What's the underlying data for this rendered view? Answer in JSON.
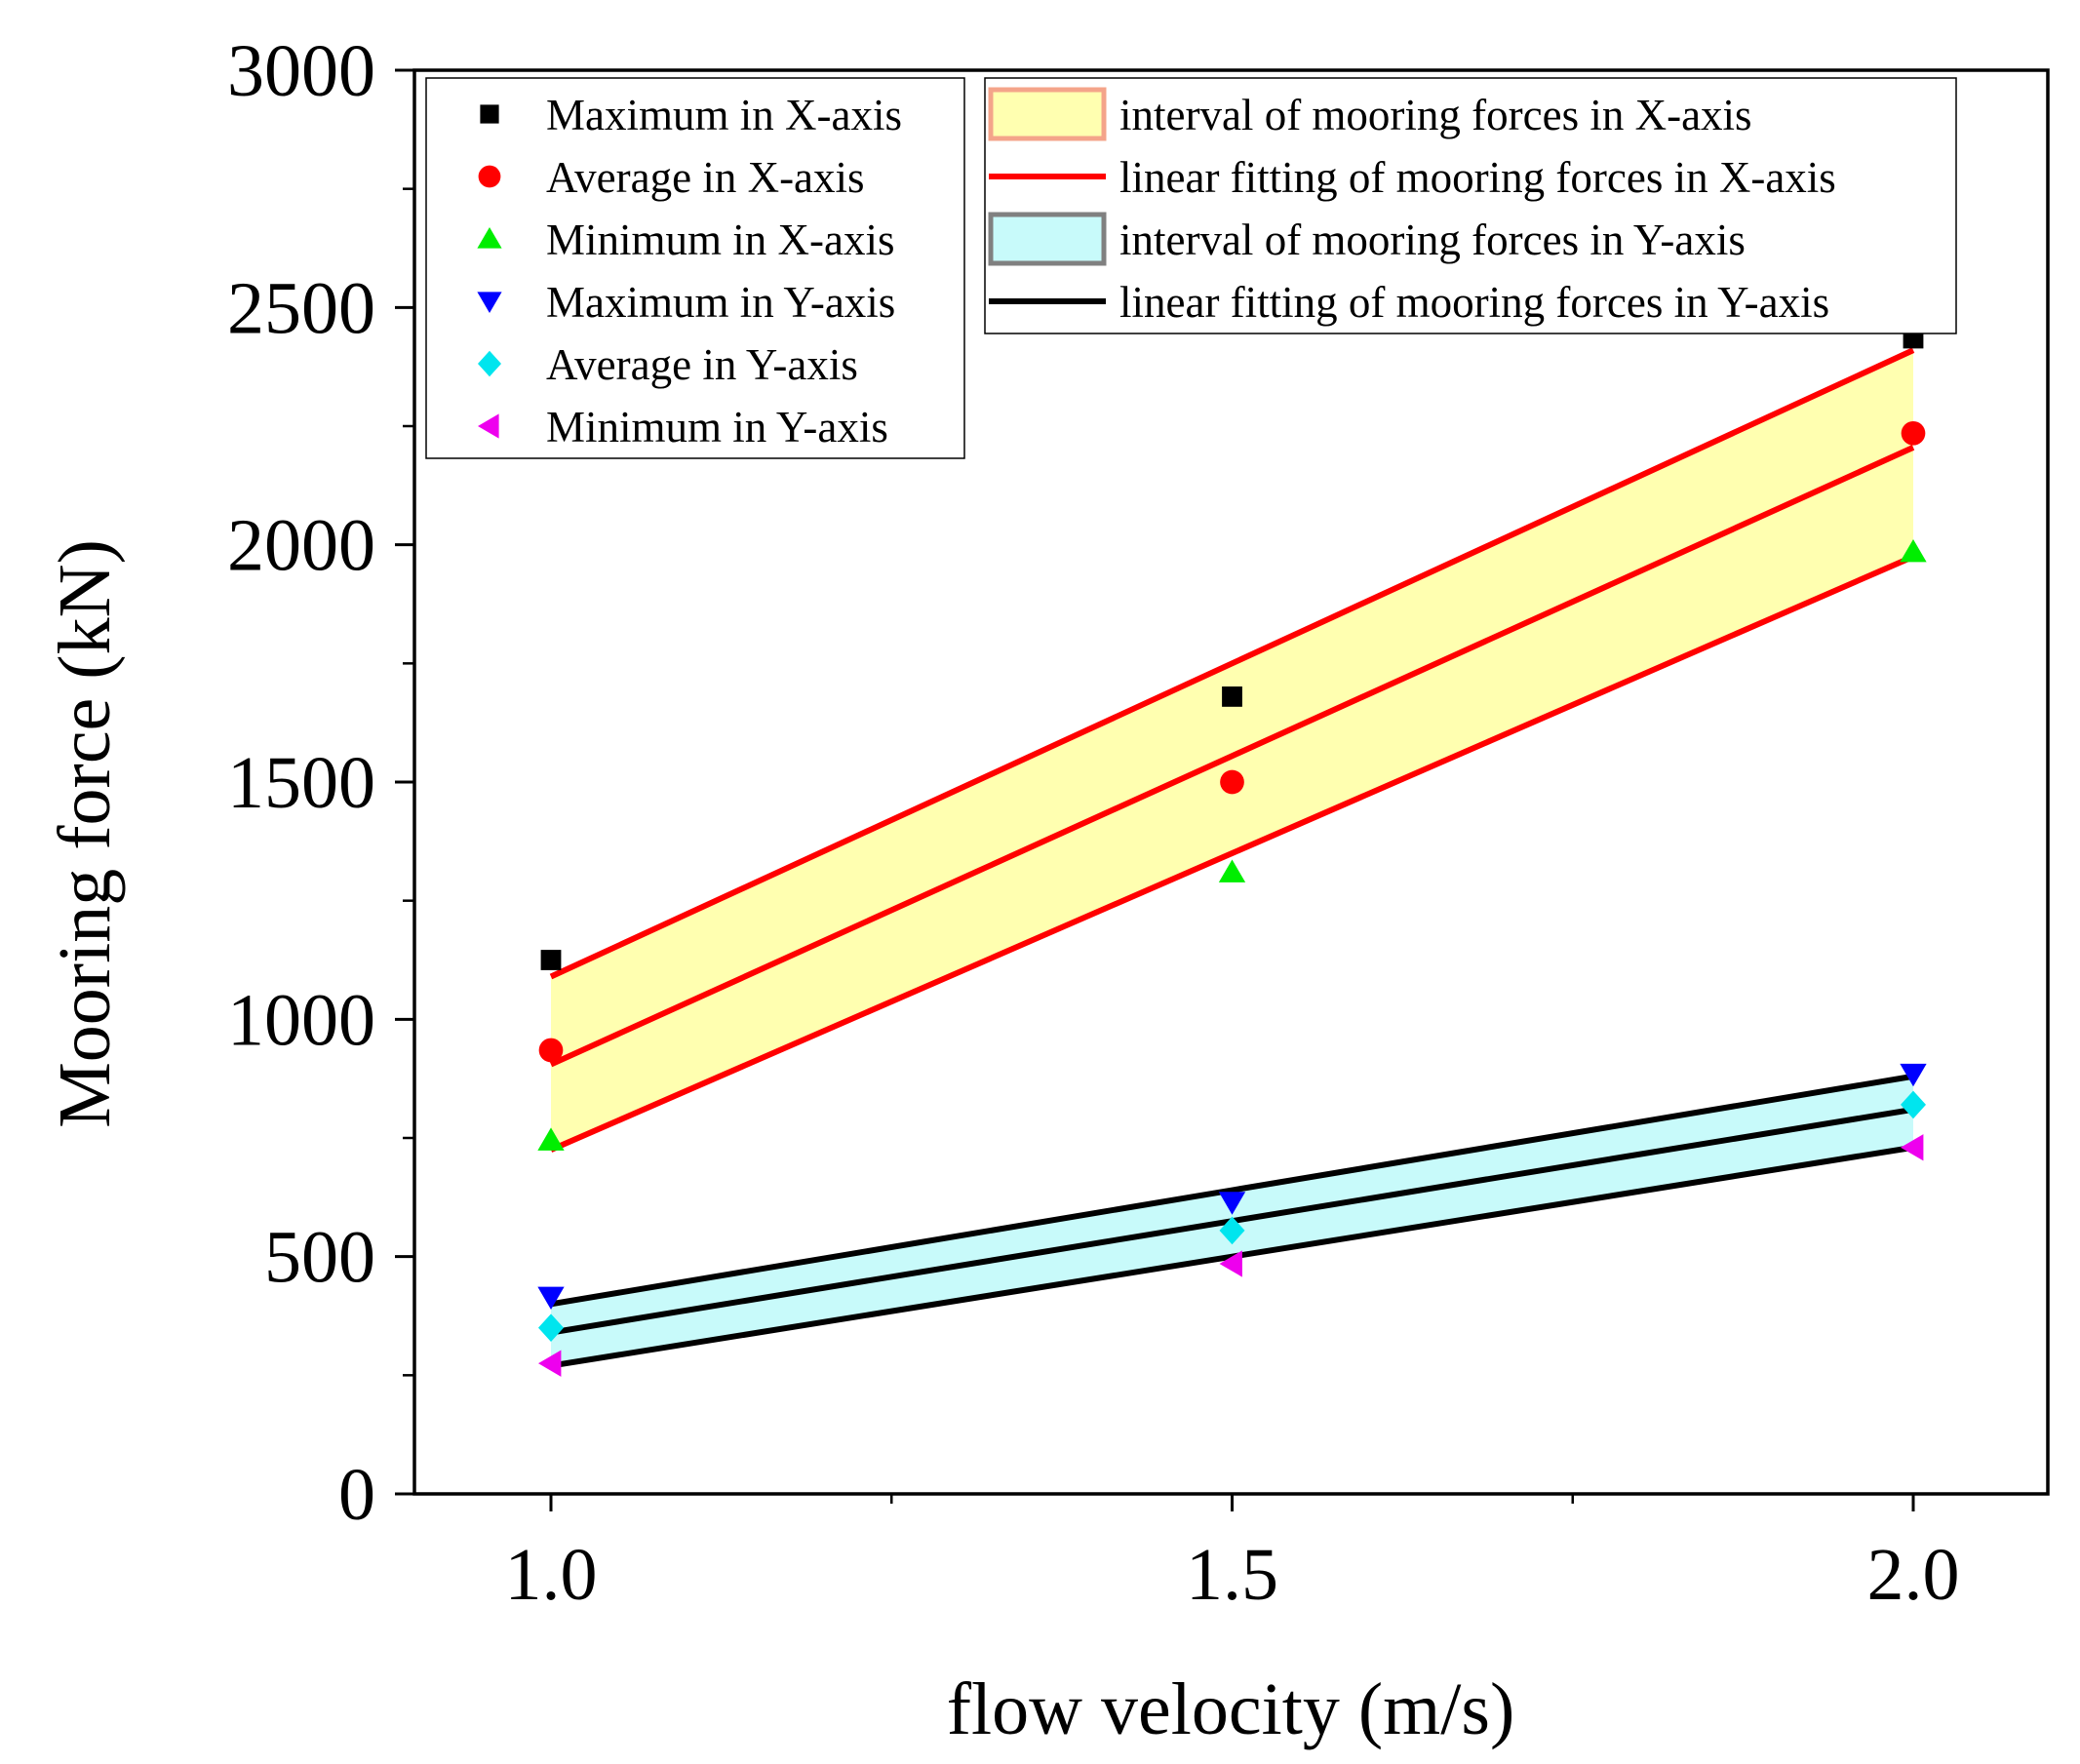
{
  "chart_data": {
    "type": "scatter",
    "xlabel": "flow velocity (m/s)",
    "ylabel": "Mooring force (kN)",
    "xlim": [
      0.9,
      2.1
    ],
    "ylim": [
      0,
      3000
    ],
    "x_ticks": [
      1.0,
      1.5,
      2.0
    ],
    "x_tick_labels": [
      "1.0",
      "1.5",
      "2.0"
    ],
    "y_ticks": [
      0,
      500,
      1000,
      1500,
      2000,
      2500,
      3000
    ],
    "y_tick_labels": [
      "0",
      "500",
      "1000",
      "1500",
      "2000",
      "2500",
      "3000"
    ],
    "x": [
      1.0,
      1.5,
      2.0
    ],
    "series": [
      {
        "name": "Maximum in X-axis",
        "marker": "square",
        "color": "#000000",
        "values": [
          1125,
          1680,
          2435
        ]
      },
      {
        "name": "Average in X-axis",
        "marker": "circle",
        "color": "#ff0000",
        "values": [
          935,
          1500,
          2235
        ]
      },
      {
        "name": "Minimum in X-axis",
        "marker": "triangle-up",
        "color": "#00ee00",
        "values": [
          745,
          1310,
          1985
        ]
      },
      {
        "name": "Maximum in Y-axis",
        "marker": "triangle-down",
        "color": "#0000ff",
        "values": [
          415,
          615,
          885
        ]
      },
      {
        "name": "Average in Y-axis",
        "marker": "diamond",
        "color": "#00e5ee",
        "values": [
          350,
          555,
          820
        ]
      },
      {
        "name": "Minimum in Y-axis",
        "marker": "triangle-left",
        "color": "#ee00ee",
        "values": [
          275,
          485,
          730
        ]
      }
    ],
    "fit_lines": [
      {
        "group": "x-axis",
        "color": "#ff0000",
        "values": [
          1090,
          1750,
          2410
        ]
      },
      {
        "group": "x-axis",
        "color": "#ff0000",
        "values": [
          905,
          1555,
          2205
        ]
      },
      {
        "group": "x-axis",
        "color": "#ff0000",
        "values": [
          725,
          1350,
          1975
        ]
      },
      {
        "group": "y-axis",
        "color": "#000000",
        "values": [
          400,
          640,
          880
        ]
      },
      {
        "group": "y-axis",
        "color": "#000000",
        "values": [
          340,
          575,
          810
        ]
      },
      {
        "group": "y-axis",
        "color": "#000000",
        "values": [
          270,
          500,
          730
        ]
      }
    ],
    "bands": [
      {
        "name": "interval of mooring forces in X-axis",
        "fill": "#ffffb0",
        "edge": "#f4a48a",
        "upper": [
          1090,
          1750,
          2410
        ],
        "lower": [
          725,
          1350,
          1975
        ]
      },
      {
        "name": "interval of mooring forces in Y-axis",
        "fill": "#c8fafa",
        "edge": "#808080",
        "upper": [
          400,
          640,
          880
        ],
        "lower": [
          270,
          500,
          730
        ]
      }
    ],
    "legend_markers": {
      "location": "top-left",
      "entries": [
        "Maximum in X-axis",
        "Average in X-axis",
        "Minimum in X-axis",
        "Maximum in Y-axis",
        "Average in Y-axis",
        "Minimum in Y-axis"
      ]
    },
    "legend_fits": {
      "location": "top-center",
      "entries": [
        {
          "kind": "band",
          "label": "interval of mooring forces in X-axis",
          "fill": "#ffffb0",
          "edge": "#f4a48a"
        },
        {
          "kind": "line",
          "label": "linear fitting of mooring forces in X-axis",
          "color": "#ff0000"
        },
        {
          "kind": "band",
          "label": "interval of mooring forces in Y-axis",
          "fill": "#c8fafa",
          "edge": "#808080"
        },
        {
          "kind": "line",
          "label": "linear fitting of mooring forces in Y-axis",
          "color": "#000000"
        }
      ]
    }
  }
}
